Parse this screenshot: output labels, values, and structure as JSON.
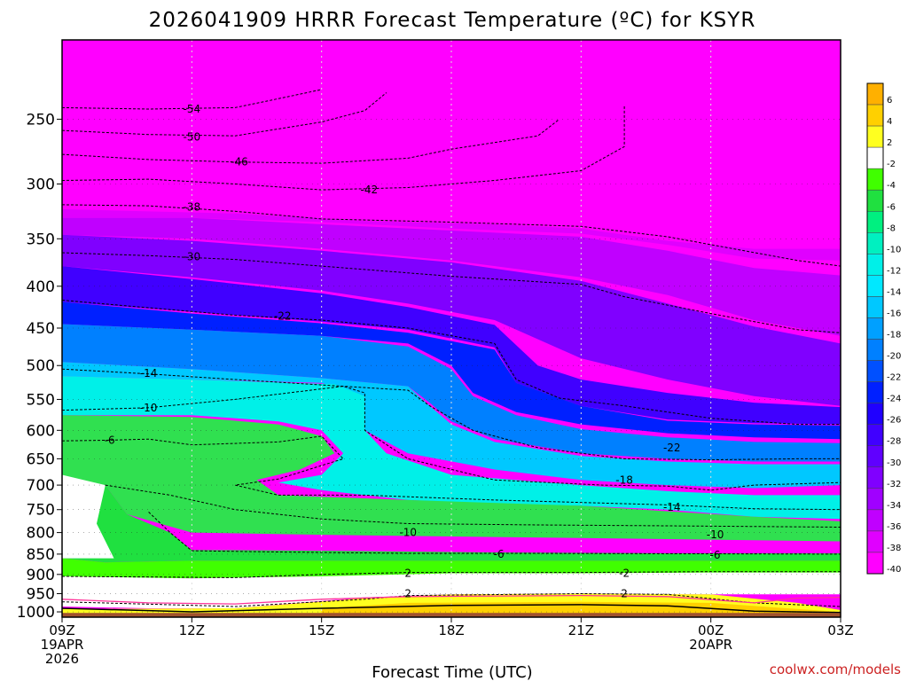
{
  "chart_data": {
    "type": "heatmap",
    "title": "2026041909 HRRR Forecast Temperature (ºC) for KSYR",
    "xlabel": "Forecast Time (UTC)",
    "ylabel": "",
    "x_hours_range": [
      0,
      18
    ],
    "ylim_hpa": [
      1015,
      200
    ],
    "y_scale": "log-pressure",
    "x_ticks": [
      {
        "hour": 0,
        "lines": [
          "09Z",
          "19APR",
          "2026"
        ]
      },
      {
        "hour": 3,
        "lines": [
          "12Z"
        ]
      },
      {
        "hour": 6,
        "lines": [
          "15Z"
        ]
      },
      {
        "hour": 9,
        "lines": [
          "18Z"
        ]
      },
      {
        "hour": 12,
        "lines": [
          "21Z"
        ]
      },
      {
        "hour": 15,
        "lines": [
          "00Z",
          "20APR"
        ]
      },
      {
        "hour": 18,
        "lines": [
          "03Z"
        ]
      }
    ],
    "y_ticks": [
      "250",
      "300",
      "350",
      "400",
      "450",
      "500",
      "550",
      "600",
      "650",
      "700",
      "750",
      "800",
      "850",
      "900",
      "950",
      "1000"
    ],
    "colorbar_levels": [
      "6",
      "4",
      "2",
      "-2",
      "-4",
      "-6",
      "-8",
      "-10",
      "-12",
      "-14",
      "-16",
      "-18",
      "-20",
      "-22",
      "-24",
      "-26",
      "-28",
      "-30",
      "-32",
      "-34",
      "-36",
      "-38",
      "-40"
    ],
    "colorbar_colors": [
      "#ffb000",
      "#ffd000",
      "#ffff20",
      "#ffffff",
      "#40ff00",
      "#20e040",
      "#00f080",
      "#00f0c0",
      "#00f0e8",
      "#00e8ff",
      "#00c8ff",
      "#00a0ff",
      "#0080ff",
      "#0050ff",
      "#0020ff",
      "#2000ff",
      "#4000ff",
      "#6000ff",
      "#8000ff",
      "#a000ff",
      "#c000ff",
      "#e000ff",
      "#ff00ff"
    ],
    "ground_color": "#a0522d",
    "freezing_line_color": "#ff3399",
    "isotherms": [
      {
        "label": "-54",
        "label_hour": 3.0,
        "label_p": 243,
        "points": [
          [
            0,
            242
          ],
          [
            2,
            243
          ],
          [
            4,
            242
          ],
          [
            5,
            236
          ],
          [
            6,
            230
          ]
        ]
      },
      {
        "label": "-50",
        "label_hour": 3.0,
        "label_p": 263,
        "points": [
          [
            0,
            258
          ],
          [
            2,
            261
          ],
          [
            4,
            262
          ],
          [
            6,
            252
          ],
          [
            7,
            244
          ],
          [
            7.5,
            232
          ]
        ]
      },
      {
        "label": "-46",
        "label_hour": 4.1,
        "label_p": 282,
        "points": [
          [
            0,
            276
          ],
          [
            2,
            280
          ],
          [
            4,
            282
          ],
          [
            6,
            283
          ],
          [
            8,
            279
          ],
          [
            9,
            272
          ],
          [
            11,
            262
          ],
          [
            11.5,
            250
          ]
        ]
      },
      {
        "label": "-42",
        "label_hour": 7.1,
        "label_p": 305,
        "points": [
          [
            0,
            297
          ],
          [
            2,
            296
          ],
          [
            4,
            300
          ],
          [
            6,
            305
          ],
          [
            8,
            303
          ],
          [
            10,
            297
          ],
          [
            12,
            289
          ],
          [
            13,
            270
          ],
          [
            13,
            240
          ]
        ]
      },
      {
        "label": "-38",
        "label_hour": 3.0,
        "label_p": 320,
        "points": [
          [
            0,
            318
          ],
          [
            2,
            319
          ],
          [
            4,
            324
          ],
          [
            6,
            331
          ],
          [
            9,
            334
          ],
          [
            12,
            338
          ],
          [
            14,
            348
          ],
          [
            17,
            372
          ],
          [
            18,
            378
          ]
        ]
      },
      {
        "label": "-30",
        "label_hour": 3.0,
        "label_p": 368,
        "points": [
          [
            0,
            364
          ],
          [
            2,
            367
          ],
          [
            4,
            371
          ],
          [
            6,
            378
          ],
          [
            9,
            389
          ],
          [
            12,
            398
          ],
          [
            13,
            412
          ],
          [
            15,
            432
          ],
          [
            17,
            452
          ],
          [
            18,
            456
          ]
        ]
      },
      {
        "label": "-22",
        "label_hour": 5.1,
        "label_p": 435,
        "points": [
          [
            0,
            416
          ],
          [
            2,
            425
          ],
          [
            4,
            434
          ],
          [
            6,
            440
          ],
          [
            8,
            450
          ],
          [
            10,
            470
          ],
          [
            10.5,
            520
          ],
          [
            11.5,
            548
          ],
          [
            13,
            560
          ],
          [
            15,
            580
          ],
          [
            17,
            590
          ],
          [
            18,
            590
          ]
        ]
      },
      {
        "label": "-14",
        "label_hour": 2.0,
        "label_p": 511,
        "points": [
          [
            0,
            505
          ],
          [
            2,
            512
          ],
          [
            4,
            520
          ],
          [
            6,
            528
          ],
          [
            8,
            536
          ],
          [
            8.5,
            560
          ],
          [
            9.5,
            600
          ],
          [
            11,
            630
          ],
          [
            13,
            650
          ],
          [
            15,
            652
          ],
          [
            17,
            650
          ],
          [
            18,
            650
          ]
        ]
      },
      {
        "label": "-10",
        "label_hour": 2.0,
        "label_p": 563,
        "points": [
          [
            0,
            567
          ],
          [
            2,
            563
          ],
          [
            4,
            550
          ],
          [
            6.5,
            530
          ],
          [
            7,
            540
          ],
          [
            7,
            600
          ],
          [
            8,
            650
          ],
          [
            10,
            690
          ],
          [
            12.5,
            700
          ],
          [
            14,
            702
          ],
          [
            15,
            710
          ],
          [
            16,
            700
          ],
          [
            18,
            695
          ]
        ]
      },
      {
        "label": "-6",
        "label_hour": 1.1,
        "label_p": 617,
        "points": [
          [
            0,
            618
          ],
          [
            1,
            617
          ],
          [
            2,
            615
          ],
          [
            3,
            625
          ],
          [
            5,
            620
          ],
          [
            6,
            610
          ],
          [
            6.5,
            650
          ],
          [
            5,
            688
          ],
          [
            4,
            700
          ],
          [
            5,
            720
          ],
          [
            7,
            720
          ],
          [
            10,
            730
          ],
          [
            14,
            740
          ],
          [
            16,
            748
          ],
          [
            18,
            750
          ]
        ]
      },
      {
        "label": "-10 (lower)",
        "label_hour": 15.1,
        "label_p": 790,
        "points": [
          [
            1,
            700
          ],
          [
            2.5,
            720
          ],
          [
            4,
            750
          ],
          [
            6,
            770
          ],
          [
            8,
            780
          ],
          [
            11,
            783
          ],
          [
            14,
            785
          ],
          [
            18,
            788
          ]
        ]
      },
      {
        "label": "-6 (lower)",
        "label_hour": 15.1,
        "label_p": 850,
        "points": [
          [
            2,
            755
          ],
          [
            2.5,
            800
          ],
          [
            3,
            842
          ],
          [
            5,
            845
          ],
          [
            8,
            848
          ],
          [
            11,
            848
          ],
          [
            14,
            849
          ],
          [
            18,
            850
          ]
        ]
      },
      {
        "label": "2",
        "label_hour": 8.0,
        "label_p": 897,
        "points": [
          [
            0,
            905
          ],
          [
            4,
            908
          ],
          [
            6,
            900
          ],
          [
            8,
            895
          ],
          [
            12,
            895
          ],
          [
            15,
            893
          ],
          [
            18,
            893
          ]
        ]
      },
      {
        "label": "2 (lower)",
        "label_hour": 8.0,
        "label_p": 950,
        "points": [
          [
            0,
            972
          ],
          [
            4,
            985
          ],
          [
            7,
            965
          ],
          [
            8,
            955
          ],
          [
            12,
            950
          ],
          [
            14,
            952
          ],
          [
            16,
            975
          ],
          [
            18,
            985
          ]
        ]
      }
    ],
    "contour_labels": [
      {
        "text": "-54",
        "hour": 3.0,
        "p": 243
      },
      {
        "text": "-50",
        "hour": 3.0,
        "p": 263
      },
      {
        "text": "-46",
        "hour": 4.1,
        "p": 282
      },
      {
        "text": "-42",
        "hour": 7.1,
        "p": 305
      },
      {
        "text": "-38",
        "hour": 3.0,
        "p": 320
      },
      {
        "text": "-30",
        "hour": 3.0,
        "p": 368
      },
      {
        "text": "-22",
        "hour": 5.1,
        "p": 435
      },
      {
        "text": "-14",
        "hour": 2.0,
        "p": 511
      },
      {
        "text": "-10",
        "hour": 2.0,
        "p": 563
      },
      {
        "text": "-6",
        "hour": 1.1,
        "p": 617
      },
      {
        "text": "-22",
        "hour": 14.1,
        "p": 630
      },
      {
        "text": "-18",
        "hour": 13.0,
        "p": 690
      },
      {
        "text": "-14",
        "hour": 14.1,
        "p": 745
      },
      {
        "text": "-10",
        "hour": 8.0,
        "p": 800
      },
      {
        "text": "-10",
        "hour": 15.1,
        "p": 805
      },
      {
        "text": "-6",
        "hour": 10.1,
        "p": 850
      },
      {
        "text": "-6",
        "hour": 15.1,
        "p": 852
      },
      {
        "text": "2",
        "hour": 8.0,
        "p": 897
      },
      {
        "text": "-2",
        "hour": 13.0,
        "p": 897
      },
      {
        "text": "2",
        "hour": 8.0,
        "p": 950
      },
      {
        "text": "2",
        "hour": 13.0,
        "p": 950
      }
    ]
  },
  "credit": "coolwx.com/models"
}
